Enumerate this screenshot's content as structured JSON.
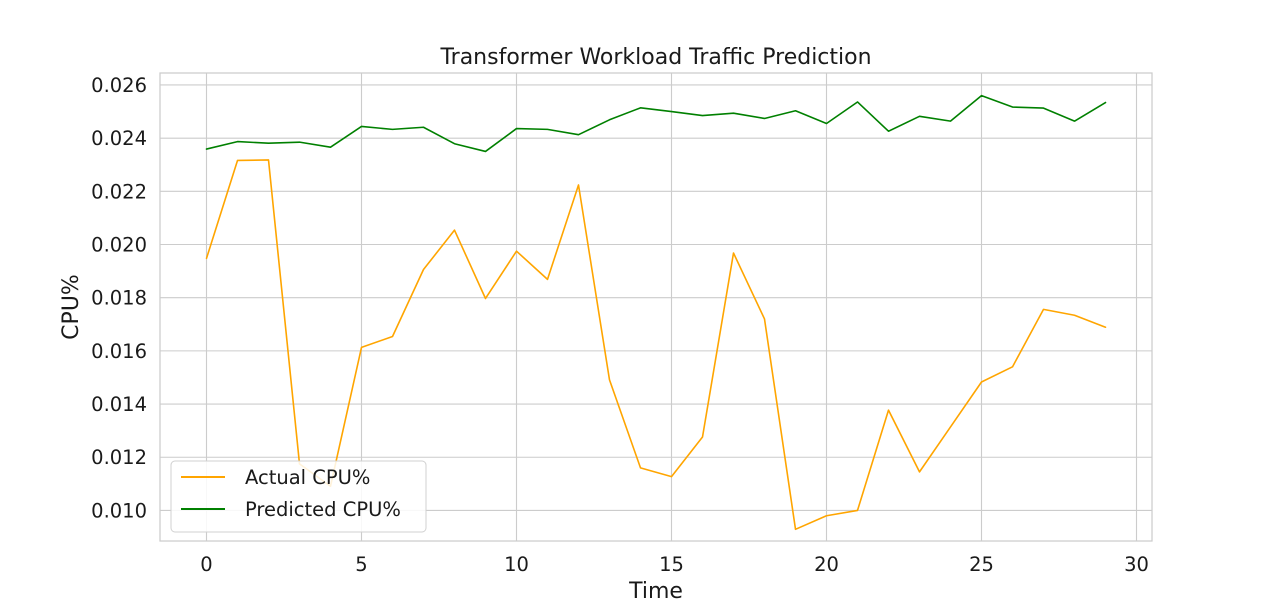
{
  "chart_data": {
    "type": "line",
    "title": "Transformer Workload Traffic Prediction",
    "xlabel": "Time",
    "ylabel": "CPU%",
    "xlim": [
      -1.5,
      30.5
    ],
    "ylim": [
      0.00885,
      0.02645
    ],
    "xticks": [
      0,
      5,
      10,
      15,
      20,
      25,
      30
    ],
    "yticks": [
      0.01,
      0.012,
      0.014,
      0.016,
      0.018,
      0.02,
      0.022,
      0.024,
      0.026
    ],
    "ytick_labels": [
      "0.010",
      "0.012",
      "0.014",
      "0.016",
      "0.018",
      "0.020",
      "0.022",
      "0.024",
      "0.026"
    ],
    "grid": true,
    "legend_position": "lower-left",
    "x": [
      0,
      1,
      2,
      3,
      4,
      5,
      6,
      7,
      8,
      9,
      10,
      11,
      12,
      13,
      14,
      15,
      16,
      17,
      18,
      19,
      20,
      21,
      22,
      23,
      24,
      25,
      26,
      27,
      28,
      29
    ],
    "series": [
      {
        "name": "Actual CPU%",
        "color": "#FFA500",
        "values": [
          0.01948,
          0.02316,
          0.02318,
          0.01175,
          0.01091,
          0.01613,
          0.01654,
          0.01906,
          0.02054,
          0.01797,
          0.01975,
          0.01869,
          0.02224,
          0.01491,
          0.0116,
          0.01127,
          0.01276,
          0.01968,
          0.0172,
          0.00929,
          0.0098,
          0.01,
          0.01377,
          0.01145,
          0.01314,
          0.01483,
          0.0154,
          0.01756,
          0.01734,
          0.01689
        ]
      },
      {
        "name": "Predicted CPU%",
        "color": "#008000",
        "values": [
          0.02359,
          0.02387,
          0.02381,
          0.02385,
          0.02366,
          0.02444,
          0.02433,
          0.02441,
          0.02379,
          0.0235,
          0.02436,
          0.02433,
          0.02413,
          0.02469,
          0.02514,
          0.025,
          0.02485,
          0.02494,
          0.02474,
          0.02503,
          0.02455,
          0.02536,
          0.02426,
          0.02482,
          0.02464,
          0.0256,
          0.02517,
          0.02513,
          0.02464,
          0.02534
        ]
      }
    ]
  }
}
